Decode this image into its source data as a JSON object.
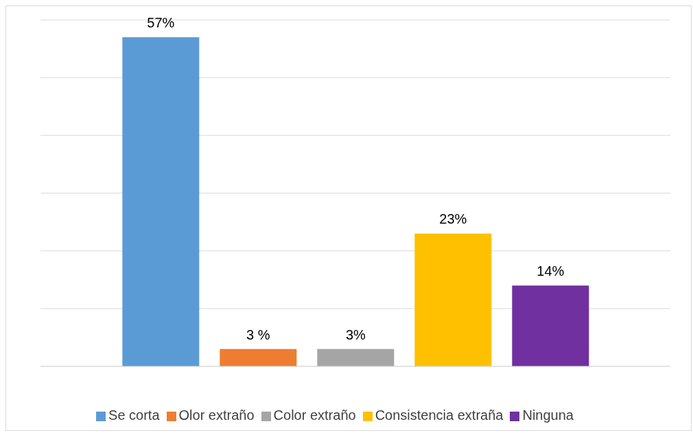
{
  "chart_data": {
    "type": "bar",
    "categories": [
      null
    ],
    "series": [
      {
        "name": "Se corta",
        "color": "#5b9bd5",
        "values": [
          57
        ],
        "value_labels": [
          "57%"
        ]
      },
      {
        "name": "Olor extraño",
        "color": "#ed7d31",
        "values": [
          3
        ],
        "value_labels": [
          "3 %"
        ]
      },
      {
        "name": "Color extraño",
        "color": "#a5a5a5",
        "values": [
          3
        ],
        "value_labels": [
          "3%"
        ]
      },
      {
        "name": "Consistencia extraña",
        "color": "#ffc000",
        "values": [
          23
        ],
        "value_labels": [
          "23%"
        ]
      },
      {
        "name": "Ninguna",
        "color": "#7030a0",
        "values": [
          14
        ],
        "value_labels": [
          "14%"
        ]
      }
    ],
    "ylim": [
      0,
      60
    ],
    "grid": "y",
    "legend": "bottom"
  }
}
